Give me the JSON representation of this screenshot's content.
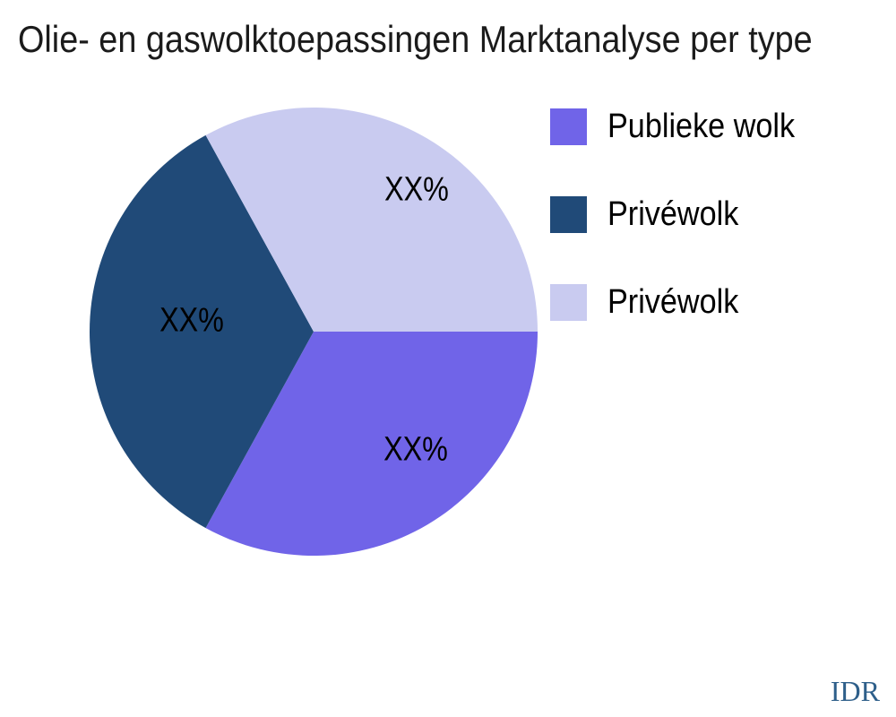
{
  "title": "Olie- en gaswolktoepassingen Marktanalyse per type",
  "watermark": {
    "text": "IDR",
    "color": "#2E5F8A"
  },
  "chart_data": {
    "type": "pie",
    "title": "Olie- en gaswolktoepassingen Marktanalyse per type",
    "unit": "percent",
    "values_masked_as": "XX%",
    "start_angle_deg": 0,
    "direction": "clockwise",
    "legend_position": "upper right",
    "background": "#ffffff",
    "slices": [
      {
        "label": "Publieke wolk",
        "value": 33,
        "pct_label": "XX%",
        "color": "#7064E8"
      },
      {
        "label": "Privéwolk",
        "value": 34,
        "pct_label": "XX%",
        "color": "#204A78"
      },
      {
        "label": "Privéwolk",
        "value": 33,
        "pct_label": "XX%",
        "color": "#C9CBF0"
      }
    ]
  }
}
